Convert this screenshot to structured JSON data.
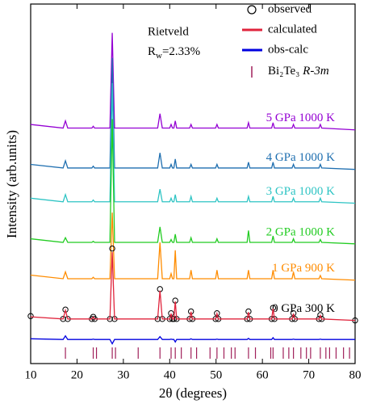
{
  "chart_data": {
    "type": "line",
    "xlabel": "2θ (degrees)",
    "ylabel": "Intensity (arb.units)",
    "xlim": [
      10,
      80
    ],
    "xticks": [
      10,
      20,
      30,
      40,
      50,
      60,
      70,
      80
    ],
    "ylim": [
      0,
      100
    ],
    "legend": "upper right",
    "annotation": {
      "title": "Rietveld",
      "r": "R",
      "r_sub": "w",
      "r_value": "=2.33%"
    },
    "x": [
      10,
      17.0,
      17.5,
      18.0,
      23.2,
      23.5,
      23.8,
      27.1,
      27.6,
      28.1,
      37.4,
      37.9,
      38.4,
      40.0,
      40.3,
      40.6,
      40.9,
      41.2,
      41.5,
      44.3,
      44.6,
      44.9,
      49.9,
      50.2,
      50.5,
      56.7,
      57.0,
      57.3,
      62.0,
      62.3,
      62.6,
      66.4,
      66.7,
      67.0,
      72.2,
      72.5,
      72.8,
      80
    ],
    "series": [
      {
        "name": "observed",
        "sample": "0 GPa 300 K",
        "marker": "circle",
        "color": "#000000",
        "values": [
          13.2,
          12.4,
          15,
          12.4,
          12.4,
          13,
          12.4,
          12.4,
          32,
          12.4,
          12.4,
          20.7,
          12.4,
          12.4,
          14,
          12.4,
          12.4,
          17.5,
          12.4,
          12.4,
          14.5,
          12.4,
          12.4,
          14,
          12.4,
          12.4,
          14.5,
          12.4,
          12.4,
          15.5,
          12.4,
          12.4,
          14,
          12.4,
          12.4,
          13.5,
          12.4,
          12
        ]
      },
      {
        "name": "calculated",
        "color": "#e0243c",
        "values": [
          13,
          12.4,
          14.8,
          12.4,
          12.4,
          12.9,
          12.4,
          12.4,
          31,
          12.4,
          12.4,
          20.3,
          12.4,
          12.4,
          13.9,
          12.4,
          12.4,
          17.3,
          12.4,
          12.4,
          14.4,
          12.4,
          12.4,
          13.9,
          12.4,
          12.4,
          14.3,
          12.4,
          12.4,
          15.3,
          12.4,
          12.4,
          13.9,
          12.4,
          12.4,
          13.4,
          12.4,
          12
        ]
      },
      {
        "name": "obs-calc",
        "color": "#0000e0",
        "values": [
          6.9,
          6.7,
          7.7,
          6.7,
          6.7,
          6.8,
          6.7,
          6.7,
          5.5,
          6.7,
          6.7,
          7.5,
          6.7,
          6.7,
          6.8,
          6.7,
          6.7,
          6,
          6.7,
          6.7,
          6.9,
          6.7,
          6.7,
          6.8,
          6.7,
          6.7,
          7,
          6.7,
          6.7,
          7.2,
          6.7,
          6.7,
          6.8,
          6.7,
          6.7,
          6.8,
          6.7,
          6.7
        ]
      }
    ],
    "patterns": [
      {
        "name": "5 GPa 1000 K",
        "color": "#9400d3",
        "values": [
          66.5,
          65.5,
          67.5,
          65.5,
          65.5,
          66,
          65.5,
          65.5,
          92,
          65.5,
          65.5,
          69.5,
          65.5,
          65.5,
          66.5,
          65.5,
          65.5,
          67.5,
          65.5,
          65.5,
          66.5,
          65.5,
          65.5,
          66.5,
          65.5,
          65.5,
          67,
          65.5,
          65.5,
          67,
          65.5,
          65.5,
          66.5,
          65.5,
          65.5,
          66.5,
          65.5,
          65
        ]
      },
      {
        "name": "4 GPa 1000 K",
        "color": "#1f6fb0",
        "values": [
          55.4,
          54.4,
          56.4,
          54.4,
          54.4,
          54.9,
          54.4,
          54.4,
          85,
          54.4,
          54.4,
          58.6,
          54.4,
          54.4,
          55.4,
          54.4,
          54.4,
          56.9,
          54.4,
          54.4,
          55.4,
          54.4,
          54.4,
          55.4,
          54.4,
          54.4,
          56,
          54.4,
          54.4,
          56,
          54.4,
          54.4,
          55.4,
          54.4,
          54.4,
          55.4,
          54.4,
          54
        ]
      },
      {
        "name": "3 GPa 1000 K",
        "color": "#2ec4c4",
        "values": [
          46,
          45,
          47,
          45,
          45,
          45.5,
          45,
          45,
          78,
          45,
          45,
          48.5,
          45,
          45,
          46,
          45,
          45,
          47,
          45,
          45,
          46.5,
          45,
          45,
          46,
          45,
          45,
          46.5,
          45,
          45,
          46.5,
          45,
          45,
          46,
          45,
          45,
          46,
          45,
          44.6
        ]
      },
      {
        "name": "2 GPa 1000 K",
        "color": "#22cc22",
        "values": [
          34.7,
          33.7,
          35,
          33.7,
          33.7,
          34,
          33.7,
          33.7,
          68,
          33.7,
          33.7,
          38,
          33.7,
          33.7,
          34.5,
          33.7,
          33.7,
          36,
          33.7,
          33.7,
          35,
          33.7,
          33.7,
          34.7,
          33.7,
          33.7,
          37,
          33.7,
          33.7,
          35.5,
          33.7,
          33.7,
          34.7,
          33.7,
          33.7,
          34.5,
          33.7,
          33.3
        ]
      },
      {
        "name": "1 GPa 900 K",
        "color": "#ff8c00",
        "values": [
          24.6,
          23.6,
          25.5,
          23.6,
          23.6,
          24,
          23.6,
          23.6,
          42,
          23.6,
          23.6,
          33.7,
          23.6,
          23.6,
          25,
          23.6,
          23.6,
          31.5,
          23.6,
          23.6,
          26,
          23.6,
          23.6,
          26,
          23.6,
          23.6,
          26,
          23.6,
          23.6,
          26,
          23.6,
          23.6,
          25.5,
          23.6,
          23.6,
          24.5,
          23.6,
          23.2
        ]
      }
    ],
    "bragg": {
      "name": "Bi₂Te₃",
      "space_group": "R-3m",
      "color": "#a0205a",
      "x": [
        17.5,
        23.5,
        24.2,
        27.6,
        28.3,
        33.2,
        37.9,
        40.3,
        41.2,
        42.5,
        44.6,
        45.8,
        48.7,
        50.2,
        51.7,
        53.3,
        54.1,
        57.0,
        58.5,
        61.8,
        62.3,
        64.5,
        65.7,
        66.7,
        68.3,
        69.5,
        70.4,
        72.5,
        73.7,
        74.5,
        75.9,
        77.5,
        78.8
      ]
    }
  }
}
